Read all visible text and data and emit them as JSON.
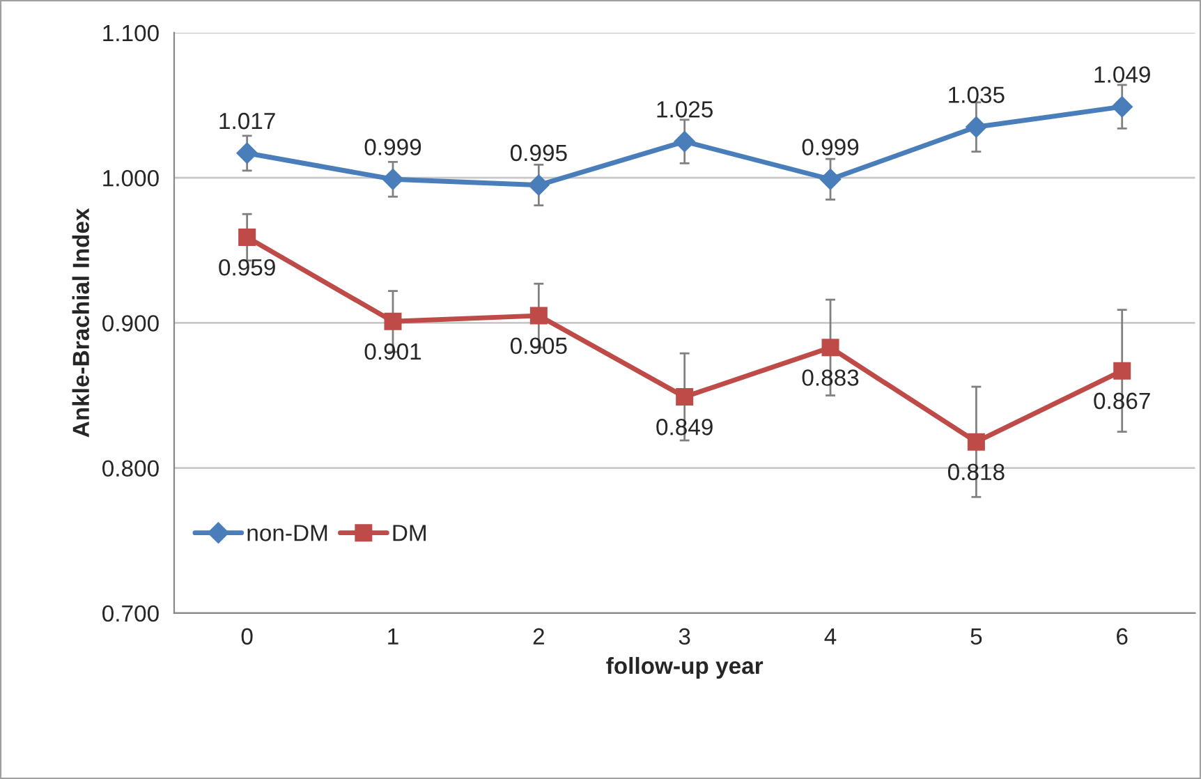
{
  "chart_data": {
    "type": "line",
    "xlabel": "follow-up year",
    "ylabel": "Ankle-Brachial Index",
    "categories": [
      "0",
      "1",
      "2",
      "3",
      "4",
      "5",
      "6"
    ],
    "series": [
      {
        "name": "non-DM",
        "color": "#4a7ebb",
        "values": [
          1.017,
          0.999,
          0.995,
          1.025,
          0.999,
          1.035,
          1.049
        ],
        "errors": [
          0.012,
          0.012,
          0.014,
          0.015,
          0.014,
          0.017,
          0.015
        ],
        "marker": "diamond"
      },
      {
        "name": "DM",
        "color": "#be4b48",
        "values": [
          0.959,
          0.901,
          0.905,
          0.849,
          0.883,
          0.818,
          0.867
        ],
        "errors": [
          0.016,
          0.021,
          0.022,
          0.03,
          0.033,
          0.038,
          0.042
        ],
        "marker": "square"
      }
    ],
    "ylim": [
      0.7,
      1.1
    ],
    "yticks": [
      {
        "value": 0.7,
        "label": "0.700"
      },
      {
        "value": 0.8,
        "label": "0.800"
      },
      {
        "value": 0.9,
        "label": "0.900"
      },
      {
        "value": 1.0,
        "label": "1.000"
      },
      {
        "value": 1.1,
        "label": "1.100"
      }
    ],
    "grid": "y",
    "legend": "bottom left",
    "data_labels": true,
    "line_style": "solid"
  }
}
